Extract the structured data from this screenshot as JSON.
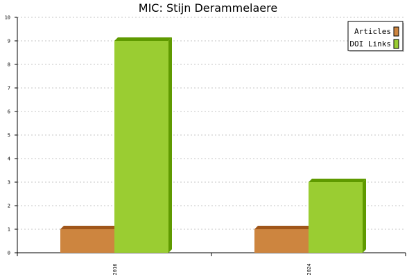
{
  "chart_data": {
    "type": "bar",
    "title": "MIC: Stijn Derammelaere",
    "xlabel": "",
    "ylabel": "",
    "categories": [
      "2016",
      "2024"
    ],
    "series": [
      {
        "name": "Articles",
        "values": [
          1,
          1
        ],
        "color": "#cd853f",
        "side_color": "#a0561a"
      },
      {
        "name": "DOI Links",
        "values": [
          9,
          3
        ],
        "color": "#9acd32",
        "side_color": "#5f9a00"
      }
    ],
    "ylim": [
      0,
      10
    ],
    "yticks": [
      "0",
      "1",
      "2",
      "3",
      "4",
      "5",
      "6",
      "7",
      "8",
      "9",
      "10"
    ],
    "grid": true,
    "legend_position": "top-right"
  }
}
